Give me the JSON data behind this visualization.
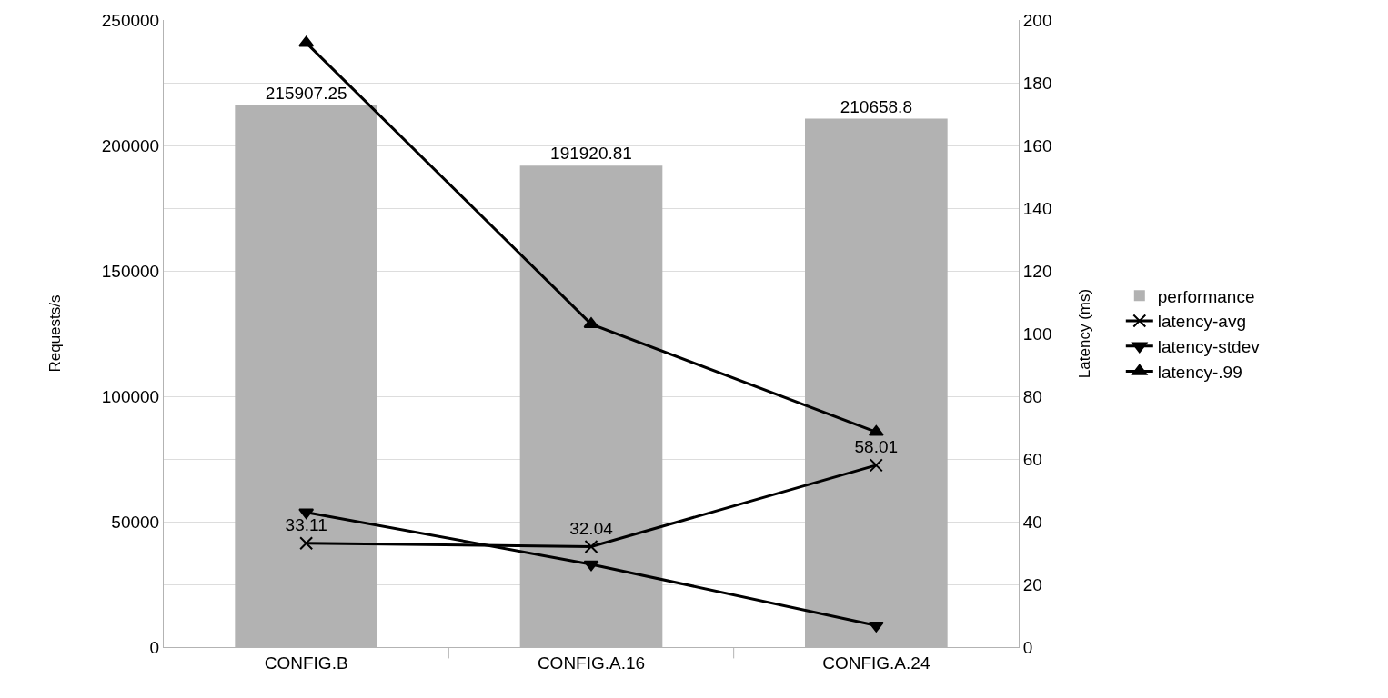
{
  "chart_data": {
    "type": "bar",
    "ylabel": "Requests/s",
    "y2label": "Latency (ms)",
    "categories": [
      "CONFIG.B",
      "CONFIG.A.16",
      "CONFIG.A.24"
    ],
    "series": [
      {
        "name": "performance",
        "color": "#b2b2b2",
        "values": [
          215907.25,
          191920.81,
          210658.8
        ],
        "value_labels": [
          "215907.25",
          "191920.81",
          "210658.8"
        ]
      },
      {
        "name": "latency-avg",
        "type": "line",
        "axis": "y2",
        "color": "#000000",
        "marker": "cross",
        "values": [
          33.11,
          32.04,
          58.01
        ],
        "value_labels": [
          "33.11",
          "32.04",
          "58.01"
        ]
      },
      {
        "name": "latency-stdev",
        "type": "line",
        "axis": "y2",
        "color": "#000000",
        "marker": "triangle-down",
        "values": [
          43.0,
          26.4,
          6.9
        ]
      },
      {
        "name": "latency-.99",
        "type": "line",
        "axis": "y2",
        "color": "#000000",
        "marker": "triangle",
        "values": [
          192.7,
          103.0,
          68.6
        ]
      }
    ],
    "ylim": [
      0,
      250000
    ],
    "yticks": [
      0,
      {
        "value": 25000,
        "label": null
      },
      50000,
      {
        "value": 75000,
        "label": null
      },
      100000,
      {
        "value": 125000,
        "label": null
      },
      150000,
      {
        "value": 175000,
        "label": null
      },
      200000,
      {
        "value": 225000,
        "label": null
      },
      250000
    ],
    "y2lim": [
      0,
      200
    ],
    "y2ticks": [
      0,
      20,
      40,
      60,
      80,
      100,
      120,
      140,
      160,
      180,
      200
    ],
    "grid": "y",
    "legend": "right",
    "line_style": "solid"
  }
}
